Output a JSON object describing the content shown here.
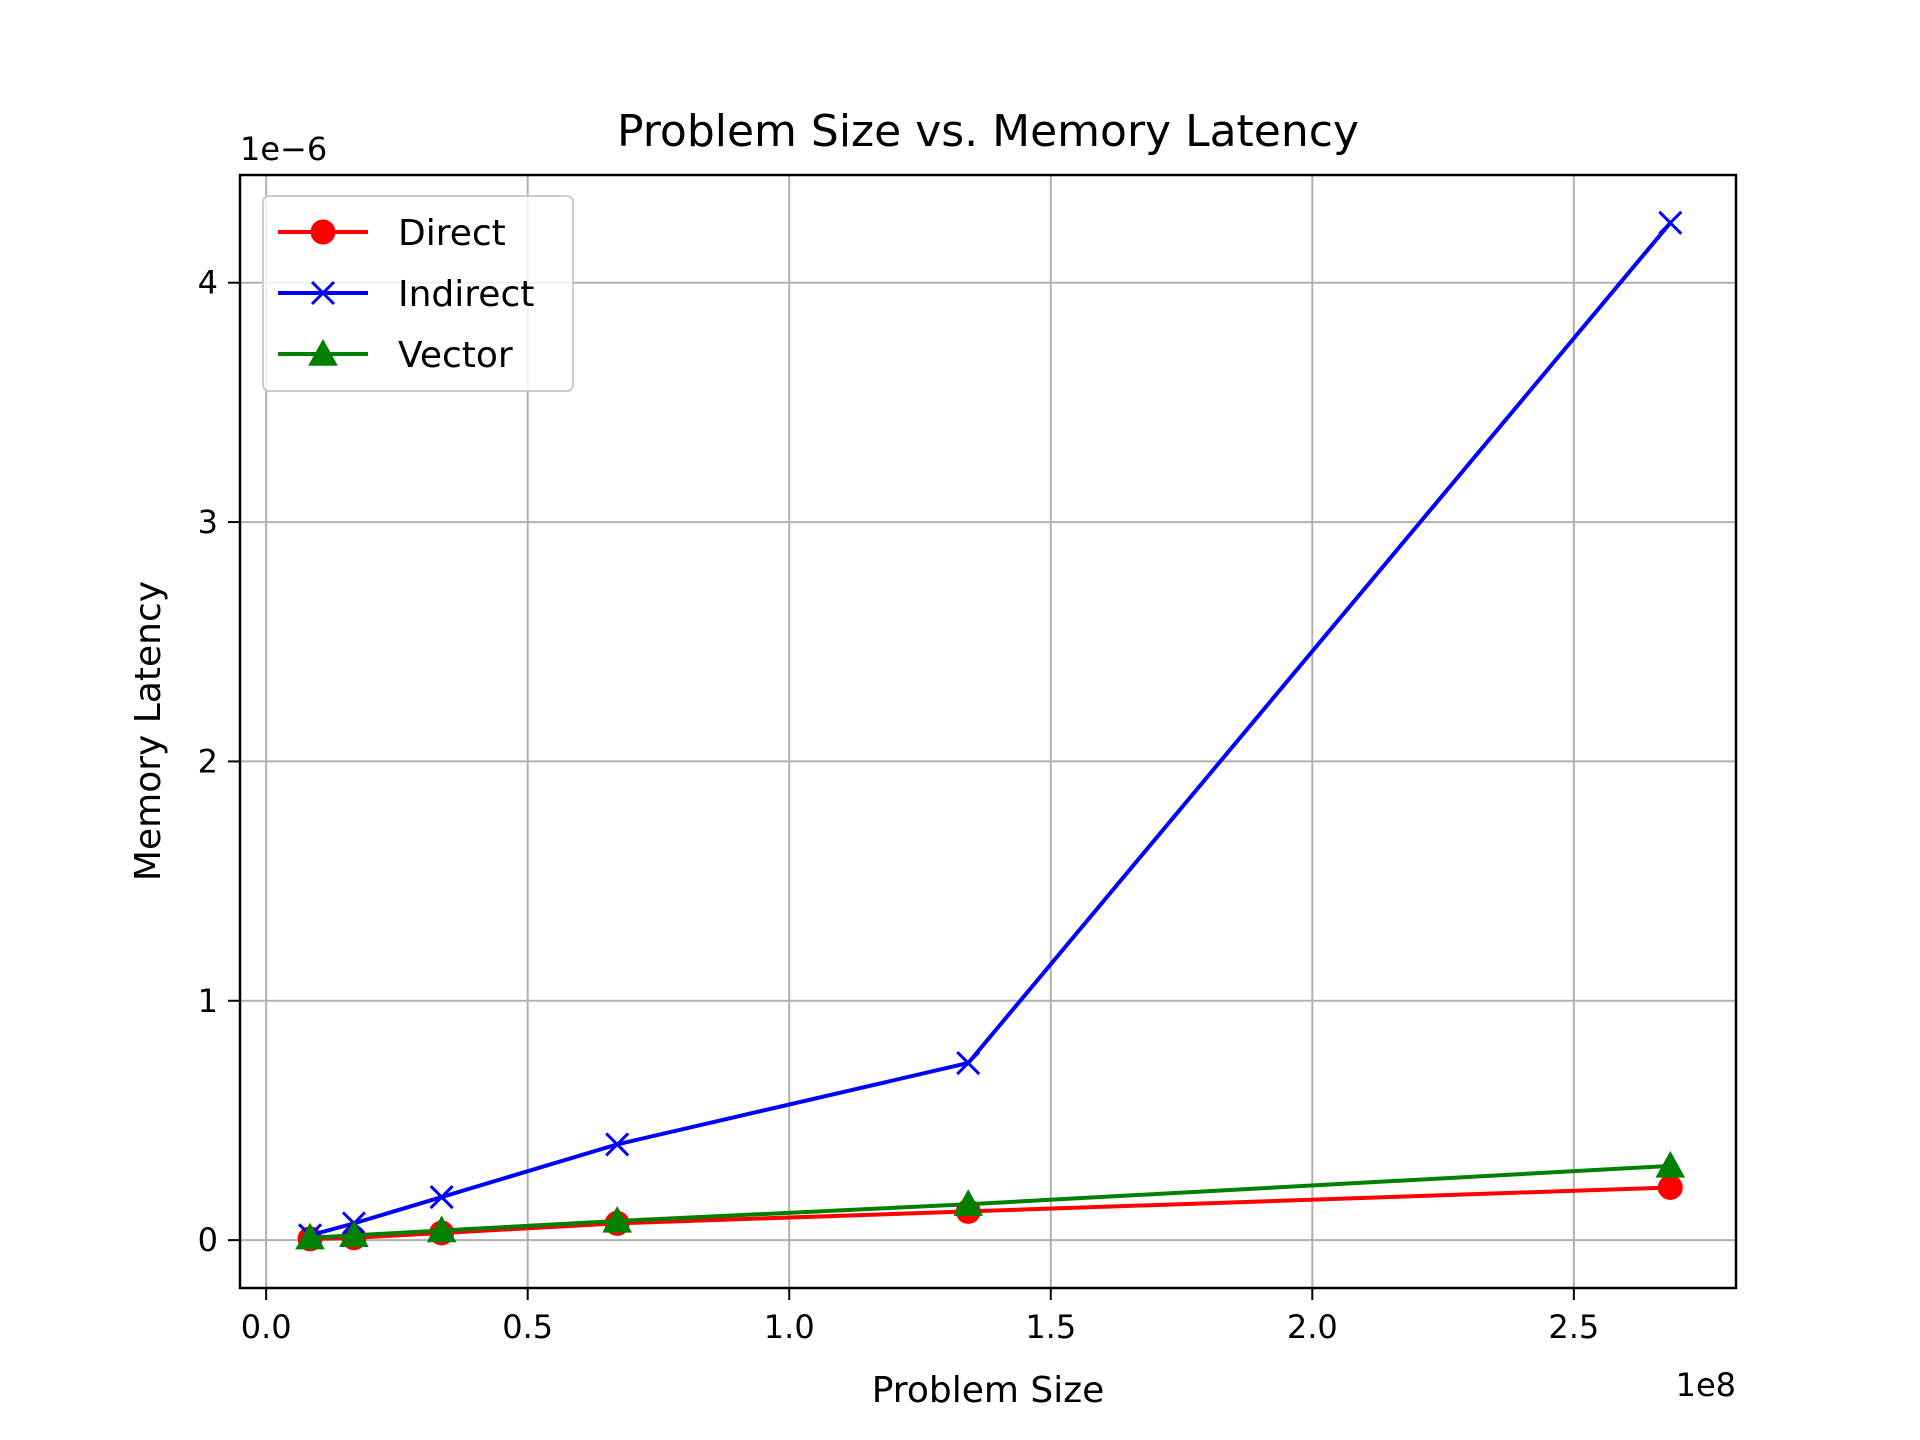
{
  "chart_data": {
    "type": "line",
    "title": "Problem Size vs. Memory Latency",
    "xlabel": "Problem Size",
    "ylabel": "Memory Latency",
    "x_offset_label": "1e8",
    "y_offset_label": "1e−6",
    "xlim": [
      -0.05,
      2.81
    ],
    "ylim": [
      -0.2,
      4.45
    ],
    "x_ticks": [
      0.0,
      0.5,
      1.0,
      1.5,
      2.0,
      2.5
    ],
    "x_tick_labels": [
      "0.0",
      "0.5",
      "1.0",
      "1.5",
      "2.0",
      "2.5"
    ],
    "y_ticks": [
      0,
      1,
      2,
      3,
      4
    ],
    "y_tick_labels": [
      "0",
      "1",
      "2",
      "3",
      "4"
    ],
    "grid": true,
    "legend_position": "top-left",
    "x": [
      0.0839,
      0.1678,
      0.3355,
      0.6711,
      1.3422,
      2.6844
    ],
    "series": [
      {
        "name": "Direct",
        "color": "#ff0000",
        "marker": "circle",
        "values": [
          0.005,
          0.01,
          0.03,
          0.07,
          0.12,
          0.22
        ]
      },
      {
        "name": "Indirect",
        "color": "#0000ff",
        "marker": "x",
        "values": [
          0.02,
          0.07,
          0.18,
          0.4,
          0.74,
          4.25
        ]
      },
      {
        "name": "Vector",
        "color": "#008000",
        "marker": "triangle",
        "values": [
          0.01,
          0.02,
          0.04,
          0.08,
          0.15,
          0.31
        ]
      }
    ]
  }
}
